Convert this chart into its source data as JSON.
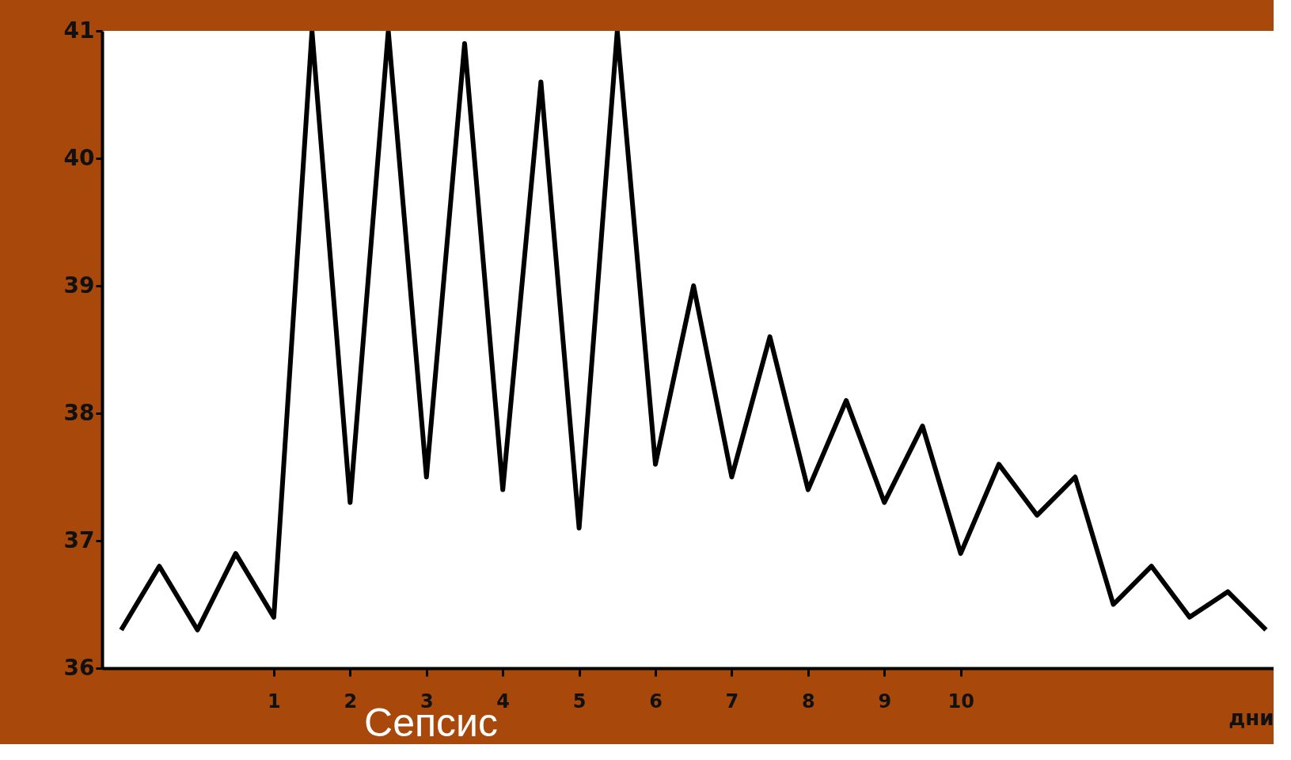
{
  "chart_data": {
    "type": "line",
    "title": "Сепсис",
    "xlabel": "дни",
    "x": [
      -1,
      -0.5,
      0,
      0.5,
      1,
      1.5,
      2,
      2.5,
      3,
      3.5,
      4,
      4.5,
      5,
      5.5,
      6,
      6.5,
      7,
      7.5,
      8,
      8.5,
      9,
      9.5,
      10,
      10.5,
      11,
      11.5,
      12,
      12.5,
      13,
      13.5,
      14
    ],
    "series": [
      {
        "color": "#000000",
        "values": [
          36.3,
          36.8,
          36.3,
          36.9,
          36.4,
          41.0,
          37.3,
          41.0,
          37.5,
          40.9,
          37.4,
          40.6,
          37.1,
          41.0,
          37.6,
          39.0,
          37.5,
          38.6,
          37.4,
          38.1,
          37.3,
          37.9,
          36.9,
          37.6,
          37.2,
          37.5,
          36.5,
          36.8,
          36.4,
          36.6,
          36.3
        ]
      }
    ],
    "xlim": [
      -1.25,
      14.1
    ],
    "xticks": [
      1,
      2,
      3,
      4,
      5,
      6,
      7,
      8,
      9,
      10
    ],
    "ylim": [
      36,
      41
    ],
    "yticks": [
      36,
      37,
      38,
      39,
      40,
      41
    ],
    "grid": false,
    "legend": false,
    "marker": "none",
    "line_style": "solid"
  }
}
